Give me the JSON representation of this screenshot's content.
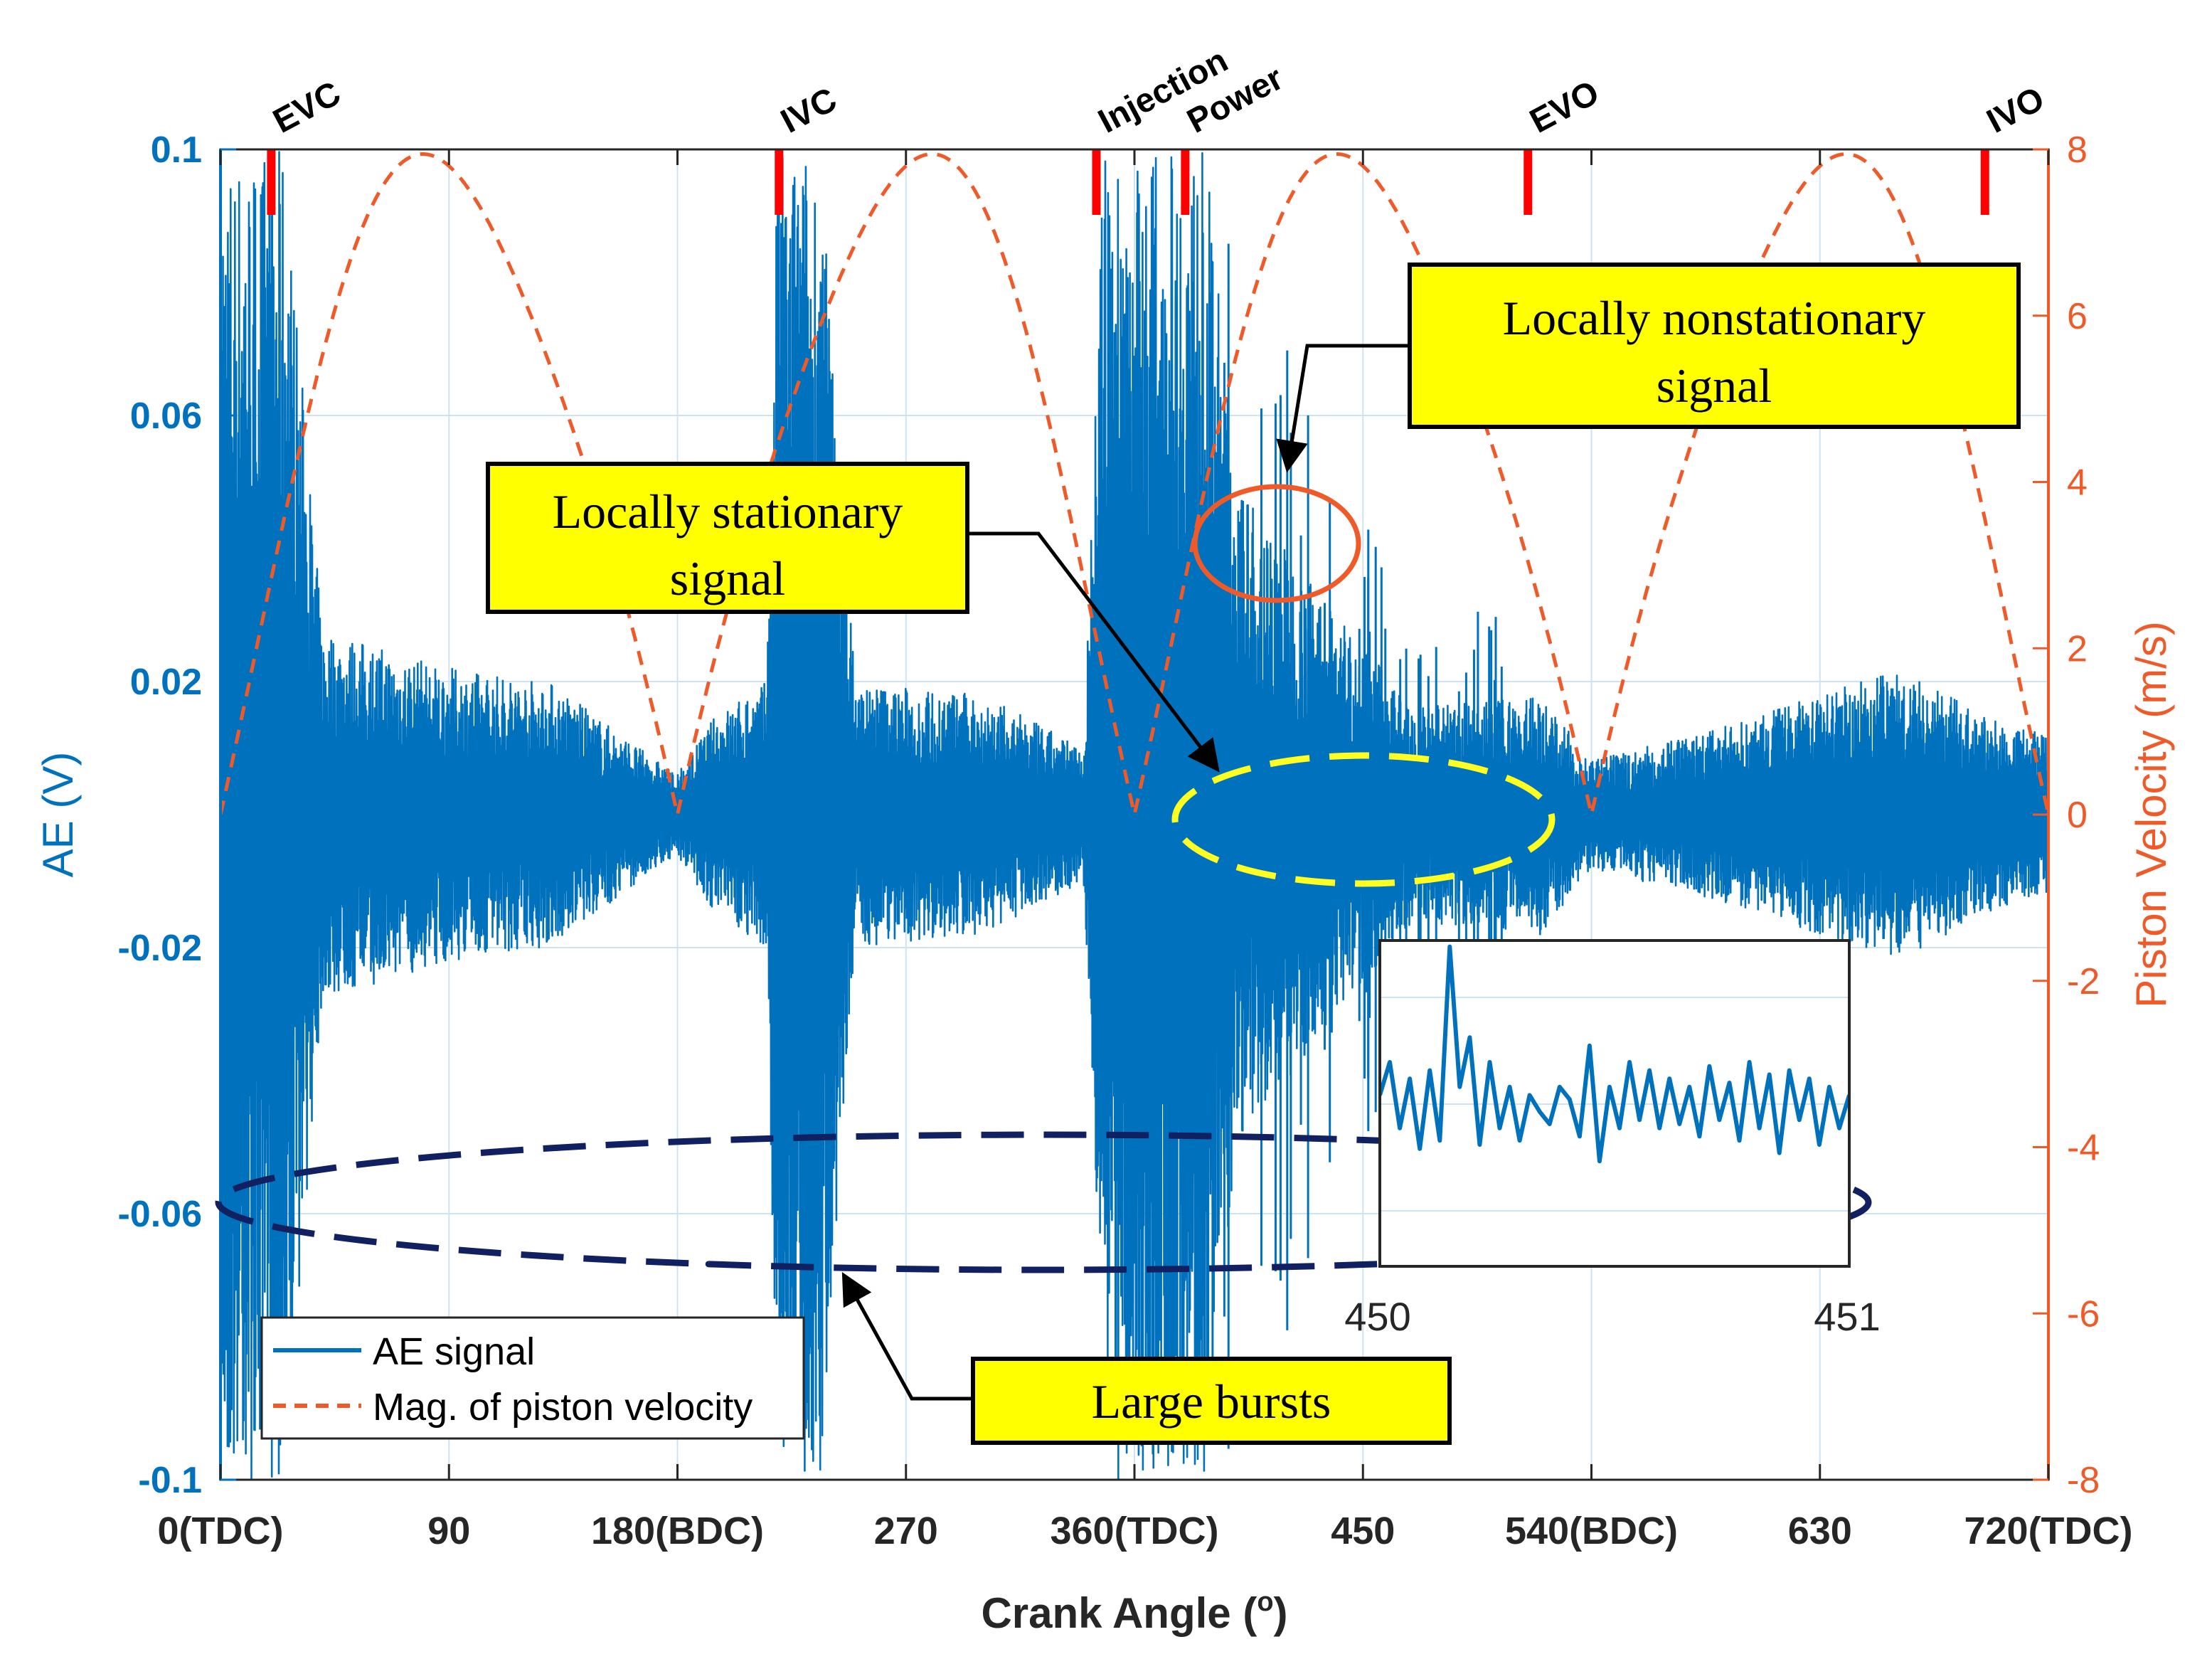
{
  "chart_data": {
    "type": "line",
    "xlabel": "Crank Angle (",
    "xlabel_sup": "o",
    "xlabel_close": ")",
    "ylabel_left": "AE (V)",
    "ylabel_right": "Piston Velocity (m/s)",
    "xlim": [
      0,
      720
    ],
    "ylim_left": [
      -0.1,
      0.1
    ],
    "ylim_right": [
      -8,
      8
    ],
    "x_ticks": [
      {
        "value": 0,
        "label": "0(TDC)"
      },
      {
        "value": 90,
        "label": "90"
      },
      {
        "value": 180,
        "label": "180(BDC)"
      },
      {
        "value": 270,
        "label": "270"
      },
      {
        "value": 360,
        "label": "360(TDC)"
      },
      {
        "value": 450,
        "label": "450"
      },
      {
        "value": 540,
        "label": "540(BDC)"
      },
      {
        "value": 630,
        "label": "630"
      },
      {
        "value": 720,
        "label": "720(TDC)"
      }
    ],
    "y_left_ticks": [
      {
        "value": 0.1,
        "label": "0.1"
      },
      {
        "value": 0.06,
        "label": "0.06"
      },
      {
        "value": 0.02,
        "label": "0.02"
      },
      {
        "value": -0.02,
        "label": "-0.02"
      },
      {
        "value": -0.06,
        "label": "-0.06"
      },
      {
        "value": -0.1,
        "label": "-0.1"
      }
    ],
    "y_right_ticks": [
      {
        "value": 8,
        "label": "8"
      },
      {
        "value": 6,
        "label": "6"
      },
      {
        "value": 4,
        "label": "4"
      },
      {
        "value": 2,
        "label": "2"
      },
      {
        "value": 0,
        "label": "0"
      },
      {
        "value": -2,
        "label": "-2"
      },
      {
        "value": -4,
        "label": "-4"
      },
      {
        "value": -6,
        "label": "-6"
      },
      {
        "value": -8,
        "label": "-8"
      }
    ],
    "grid": true,
    "series": [
      {
        "name": "AE signal",
        "axis": "left",
        "color": "#0072BD",
        "style": "solid",
        "envelope": [
          {
            "x": 0,
            "amp": 0.1
          },
          {
            "x": 25,
            "amp": 0.1
          },
          {
            "x": 40,
            "amp": 0.028
          },
          {
            "x": 90,
            "amp": 0.022
          },
          {
            "x": 130,
            "amp": 0.02
          },
          {
            "x": 165,
            "amp": 0.01
          },
          {
            "x": 180,
            "amp": 0.006
          },
          {
            "x": 195,
            "amp": 0.015
          },
          {
            "x": 215,
            "amp": 0.02
          },
          {
            "x": 219,
            "amp": 0.1
          },
          {
            "x": 236,
            "amp": 0.1
          },
          {
            "x": 250,
            "amp": 0.02
          },
          {
            "x": 300,
            "amp": 0.018
          },
          {
            "x": 340,
            "amp": 0.01
          },
          {
            "x": 348,
            "amp": 0.1
          },
          {
            "x": 388,
            "amp": 0.1
          },
          {
            "x": 400,
            "amp": 0.05
          },
          {
            "x": 440,
            "amp": 0.03
          },
          {
            "x": 470,
            "amp": 0.016
          },
          {
            "x": 520,
            "amp": 0.018
          },
          {
            "x": 540,
            "amp": 0.008
          },
          {
            "x": 600,
            "amp": 0.014
          },
          {
            "x": 660,
            "amp": 0.022
          },
          {
            "x": 700,
            "amp": 0.014
          },
          {
            "x": 720,
            "amp": 0.012
          }
        ]
      },
      {
        "name": "Mag. of piston velocity",
        "axis": "right",
        "color": "#F05A28",
        "style": "dashed",
        "x": [
          0,
          30,
          60,
          85,
          110,
          150,
          180,
          210,
          250,
          275,
          300,
          330,
          360,
          390,
          420,
          437,
          460,
          500,
          540,
          570,
          610,
          643,
          670,
          700,
          720
        ],
        "values": [
          0.0,
          4.7,
          7.4,
          7.8,
          7.2,
          3.6,
          0.0,
          3.6,
          7.2,
          7.8,
          7.2,
          3.6,
          0.0,
          3.6,
          7.2,
          7.8,
          7.2,
          3.6,
          0.0,
          3.6,
          7.2,
          7.8,
          7.2,
          3.6,
          0.0
        ]
      }
    ],
    "event_markers": [
      {
        "x": 20,
        "label": "EVC"
      },
      {
        "x": 220,
        "label": "IVC"
      },
      {
        "x": 345,
        "label": "Injection"
      },
      {
        "x": 380,
        "label": "Power"
      },
      {
        "x": 515,
        "label": "EVO"
      },
      {
        "x": 695,
        "label": "IVO"
      }
    ],
    "legend": {
      "placement": "bottom-left",
      "entries": [
        "AE signal",
        "Mag. of piston velocity"
      ]
    },
    "annotations": {
      "nonstationary": "Locally nonstationary signal",
      "nonstationary_line1": "Locally nonstationary",
      "nonstationary_line2": "signal",
      "stationary_line1": "Locally stationary",
      "stationary_line2": "signal",
      "bursts": "Large bursts"
    },
    "inset": {
      "xlim": [
        450,
        451
      ],
      "x_tick_labels": [
        "450",
        "451"
      ],
      "values": [
        0.002,
        0.01,
        -0.006,
        0.006,
        -0.011,
        0.008,
        -0.009,
        0.038,
        0.004,
        0.016,
        -0.01,
        0.01,
        -0.006,
        0.004,
        -0.009,
        0.002,
        -0.002,
        -0.005,
        0.004,
        0.001,
        -0.008,
        0.014,
        -0.014,
        0.004,
        -0.006,
        0.01,
        -0.004,
        0.008,
        -0.006,
        0.006,
        -0.005,
        0.004,
        -0.008,
        0.009,
        -0.004,
        0.005,
        -0.009,
        0.01,
        -0.006,
        0.007,
        -0.012,
        0.008,
        -0.004,
        0.006,
        -0.01,
        0.004,
        -0.006,
        0.002
      ]
    }
  },
  "colors": {
    "ae": "#0072BD",
    "velocity": "#F05A28",
    "marker": "#FF0000",
    "highlight": "#FFFF00",
    "stationary_ellipse": "#FFFF22",
    "burst_ellipse": "#102060",
    "nonstationary_circle": "#F05A28",
    "grid": "#CDE3F3"
  }
}
